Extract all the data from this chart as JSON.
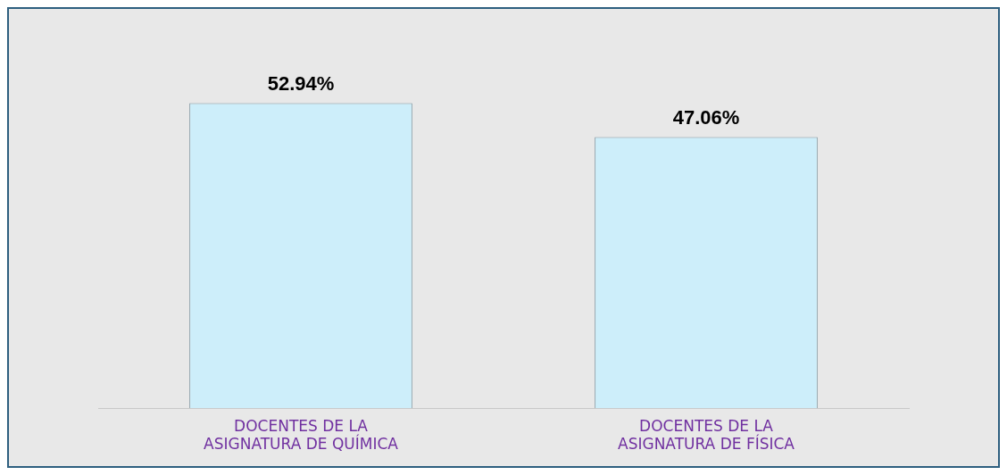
{
  "chart_data": {
    "type": "bar",
    "categories": [
      "DOCENTES DE LA ASIGNATURA DE QUÍMICA",
      "DOCENTES DE LA ASIGNATURA DE FÍSICA"
    ],
    "values": [
      52.94,
      47.06
    ],
    "color": "#cdeefa",
    "value_labels": [
      "52.94%",
      "47.06%"
    ],
    "grid": false,
    "legend": false
  }
}
